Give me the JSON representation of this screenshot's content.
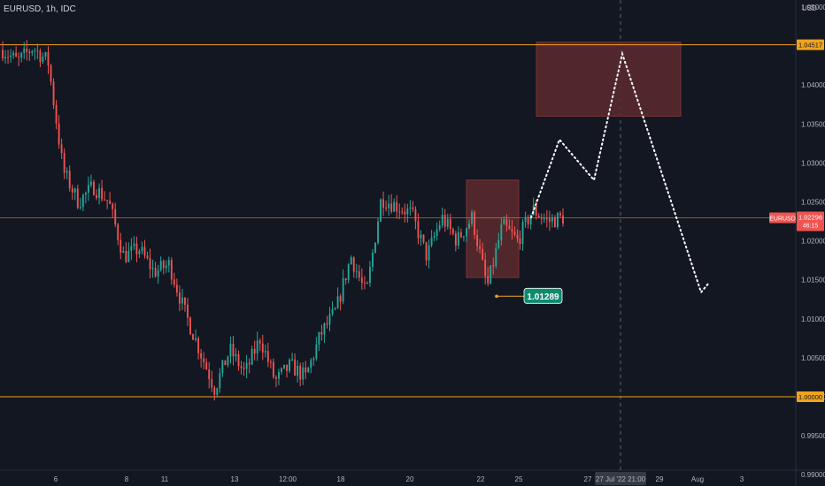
{
  "header": {
    "title": "EURUSD, 1h, IDC"
  },
  "axis": {
    "unit": "USD"
  },
  "colors": {
    "background": "#131722",
    "up": "#26a69a",
    "down": "#ef5350",
    "level": "#f0a31c",
    "zone": "#5d2a2d",
    "zone_border": "#7a3336",
    "price_tag": "#ef5350",
    "low_tag": "#0f8a6f",
    "path": "#ffffff"
  },
  "chart_data": {
    "type": "candlestick",
    "title": "EURUSD, 1h, IDC",
    "ylabel": "USD",
    "ylim": [
      0.99,
      1.05
    ],
    "y_ticks": [
      "1.05000",
      "1.04000",
      "1.03500",
      "1.03000",
      "1.02500",
      "1.02000",
      "1.01500",
      "1.01000",
      "1.00500",
      "1.00000",
      "0.99500",
      "0.99000"
    ],
    "x_ticks": [
      "6",
      "8",
      "11",
      "13",
      "12:00",
      "18",
      "20",
      "22",
      "25",
      "27",
      "29",
      "Aug",
      "3"
    ],
    "crosshair_label": "27 Jul '22  21:00",
    "horizontal_levels": [
      {
        "value": 1.04517,
        "label": "1.04517"
      },
      {
        "value": 1.0,
        "label": "1.00000"
      }
    ],
    "current_price": {
      "symbol": "EURUSD",
      "value": 1.02296,
      "label": "1.02296",
      "countdown": "46:15"
    },
    "low_annotation": {
      "value": 1.01289,
      "label": "1.01289"
    },
    "zones": [
      {
        "name": "upper-target-zone",
        "y_top": 1.0455,
        "y_bottom": 1.036
      },
      {
        "name": "support-zone",
        "y_top": 1.0278,
        "y_bottom": 1.0153
      }
    ],
    "projection_path": [
      1.023,
      1.033,
      1.0278,
      1.044,
      1.0134,
      1.0145
    ],
    "price_path_anchors": [
      1.0445,
      1.043,
      1.0448,
      1.043,
      1.029,
      1.025,
      1.027,
      1.025,
      1.018,
      1.019,
      1.016,
      1.017,
      1.011,
      1.006,
      1.001,
      1.006,
      1.003,
      1.0075,
      1.002,
      1.004,
      1.0025,
      1.008,
      1.011,
      1.018,
      1.013,
      1.0255,
      1.0245,
      1.0235,
      1.018,
      1.023,
      1.02,
      1.023,
      1.014,
      1.022,
      1.02,
      1.024,
      1.0225,
      1.023
    ]
  }
}
